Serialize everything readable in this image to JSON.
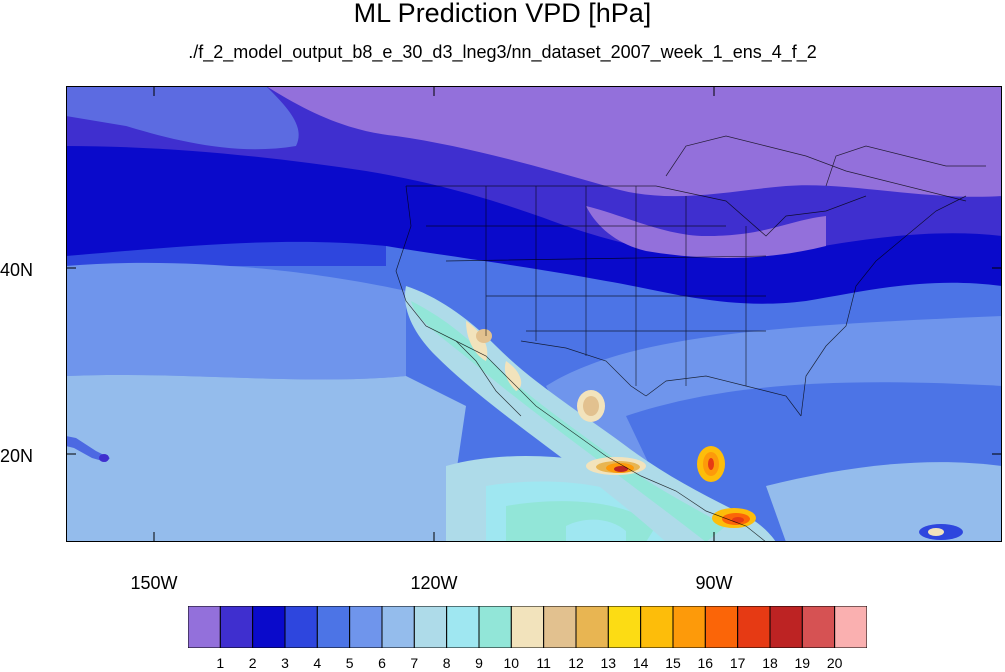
{
  "title": "ML Prediction VPD [hPa]",
  "subtitle": "./f_2_model_output_b8_e_30_d3_lneg3/nn_dataset_2007_week_1_ens_4_f_2",
  "lat_labels": [
    "40N",
    "20N"
  ],
  "lon_labels": [
    "150W",
    "120W",
    "90W"
  ],
  "colorbar": {
    "levels": [
      "1",
      "2",
      "3",
      "4",
      "5",
      "6",
      "7",
      "8",
      "9",
      "10",
      "11",
      "12",
      "13",
      "14",
      "15",
      "16",
      "17",
      "18",
      "19",
      "20"
    ],
    "colors": [
      "#9370db",
      "#3f2fcf",
      "#0a0acb",
      "#2e46de",
      "#4c74e6",
      "#6f95ec",
      "#94bcec",
      "#aedbe9",
      "#9fe7f1",
      "#92e6d8",
      "#f2e3bc",
      "#e2c18f",
      "#e8b552",
      "#fcdc14",
      "#fdbd0a",
      "#fd9a0a",
      "#fb6508",
      "#e63a14",
      "#bd2323",
      "#d65253",
      "#fab0b0"
    ]
  }
}
